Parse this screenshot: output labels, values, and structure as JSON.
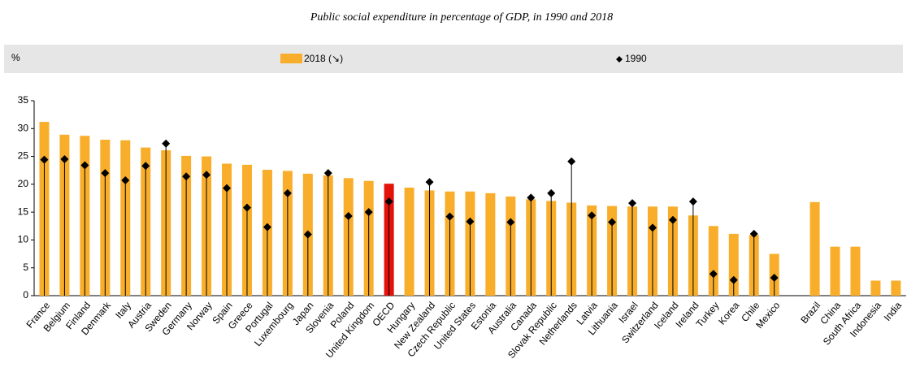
{
  "chart_data": {
    "type": "bar",
    "title": "Public social expenditure in percentage of GDP, in 1990 and 2018",
    "y_label": "%",
    "categories": [
      "France",
      "Belgium",
      "Finland",
      "Denmark",
      "Italy",
      "Austria",
      "Sweden",
      "Germany",
      "Norway",
      "Spain",
      "Greece",
      "Portugal",
      "Luxembourg",
      "Japan",
      "Slovenia",
      "Poland",
      "United Kingdom",
      "OECD",
      "Hungary",
      "New Zealand",
      "Czech Republic",
      "United States",
      "Estonia",
      "Australia",
      "Canada",
      "Slovak Republic",
      "Netherlands",
      "Latvia",
      "Lithuania",
      "Israel",
      "Switzerland",
      "Iceland",
      "Ireland",
      "Turkey",
      "Korea",
      "Chile",
      "Mexico",
      null,
      "Brazil",
      "China",
      "South Africa",
      "Indonesia",
      "India"
    ],
    "series": [
      {
        "name": "2018 (↘)",
        "color": "#f9ae2b",
        "values": [
          31.2,
          28.9,
          28.7,
          28.0,
          27.9,
          26.6,
          26.1,
          25.1,
          25.0,
          23.7,
          23.5,
          22.6,
          22.4,
          21.9,
          21.6,
          21.1,
          20.6,
          20.1,
          19.4,
          18.9,
          18.7,
          18.7,
          18.4,
          17.8,
          17.3,
          17.0,
          16.7,
          16.2,
          16.1,
          16.0,
          16.0,
          16.0,
          14.4,
          12.5,
          11.1,
          10.9,
          7.5,
          null,
          16.8,
          8.8,
          8.8,
          2.7,
          2.7
        ]
      },
      {
        "name": "1990",
        "color": "#000000",
        "marker": "diamond",
        "values": [
          24.4,
          24.5,
          23.4,
          22.0,
          20.7,
          23.3,
          27.3,
          21.4,
          21.7,
          19.3,
          15.8,
          12.3,
          18.4,
          11.0,
          22.0,
          14.3,
          15.0,
          16.9,
          null,
          20.4,
          14.2,
          13.3,
          null,
          13.2,
          17.6,
          18.4,
          24.1,
          14.4,
          13.2,
          16.6,
          12.2,
          13.6,
          16.9,
          3.9,
          2.8,
          11.1,
          3.2,
          null,
          null,
          null,
          null,
          null,
          null
        ]
      }
    ],
    "highlight": {
      "index": 17,
      "color": "#e3120b"
    },
    "ylim": [
      0,
      35
    ],
    "yticks": [
      0,
      5,
      10,
      15,
      20,
      25,
      30,
      35
    ],
    "grid": false
  }
}
